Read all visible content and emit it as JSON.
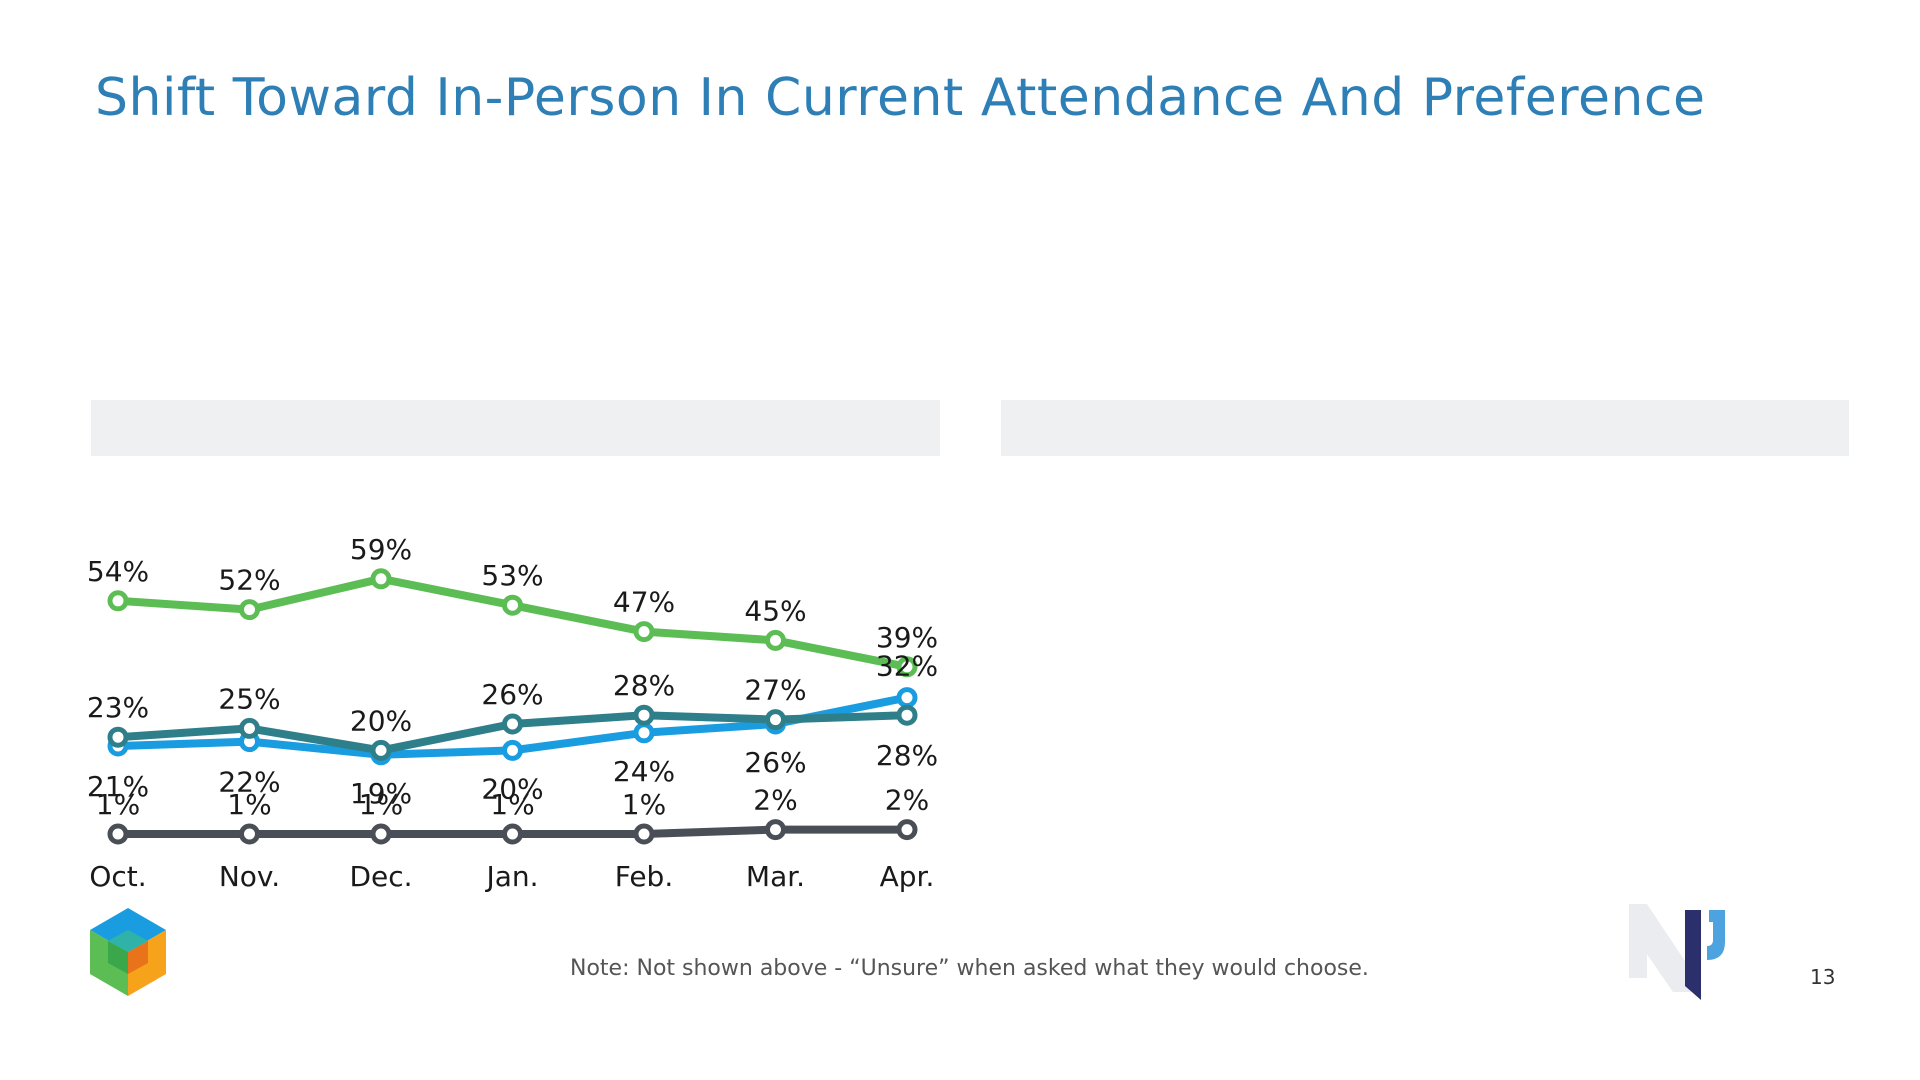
{
  "title": "Shift Toward In-Person In Current Attendance And Preference",
  "note": "Note: Not shown above - “Unsure” when asked what they would choose.",
  "page_number": "13",
  "logos": [
    "cube-logo",
    "np-logo"
  ],
  "colors": {
    "title": "#2d7fb5",
    "panel": "#eef0f1",
    "green": "#5cbd55",
    "blue": "#1a9de0",
    "teal": "#2f7f8a",
    "gray": "#4a4f57"
  },
  "chart_data": {
    "type": "line",
    "categories": [
      "Oct.",
      "Nov.",
      "Dec.",
      "Jan.",
      "Feb.",
      "Mar.",
      "Apr."
    ],
    "series": [
      {
        "color": "#5cbd55",
        "values": [
          54,
          52,
          59,
          53,
          47,
          45,
          39
        ],
        "labels": [
          "54%",
          "52%",
          "59%",
          "53%",
          "47%",
          "45%",
          "39%"
        ]
      },
      {
        "color": "#1a9de0",
        "values": [
          21,
          22,
          19,
          20,
          24,
          26,
          32
        ],
        "labels": [
          "21%",
          "22%",
          "19%",
          "20%",
          "24%",
          "26%",
          "32%"
        ]
      },
      {
        "color": "#2f7f8a",
        "values": [
          23,
          25,
          20,
          26,
          28,
          27,
          28
        ],
        "labels": [
          "23%",
          "25%",
          "20%",
          "26%",
          "28%",
          "27%",
          "28%"
        ]
      },
      {
        "color": "#4a4f57",
        "values": [
          1,
          1,
          1,
          1,
          1,
          2,
          2
        ],
        "labels": [
          "1%",
          "1%",
          "1%",
          "1%",
          "1%",
          "2%",
          "2%"
        ]
      }
    ],
    "grid": false,
    "legend": "none"
  }
}
